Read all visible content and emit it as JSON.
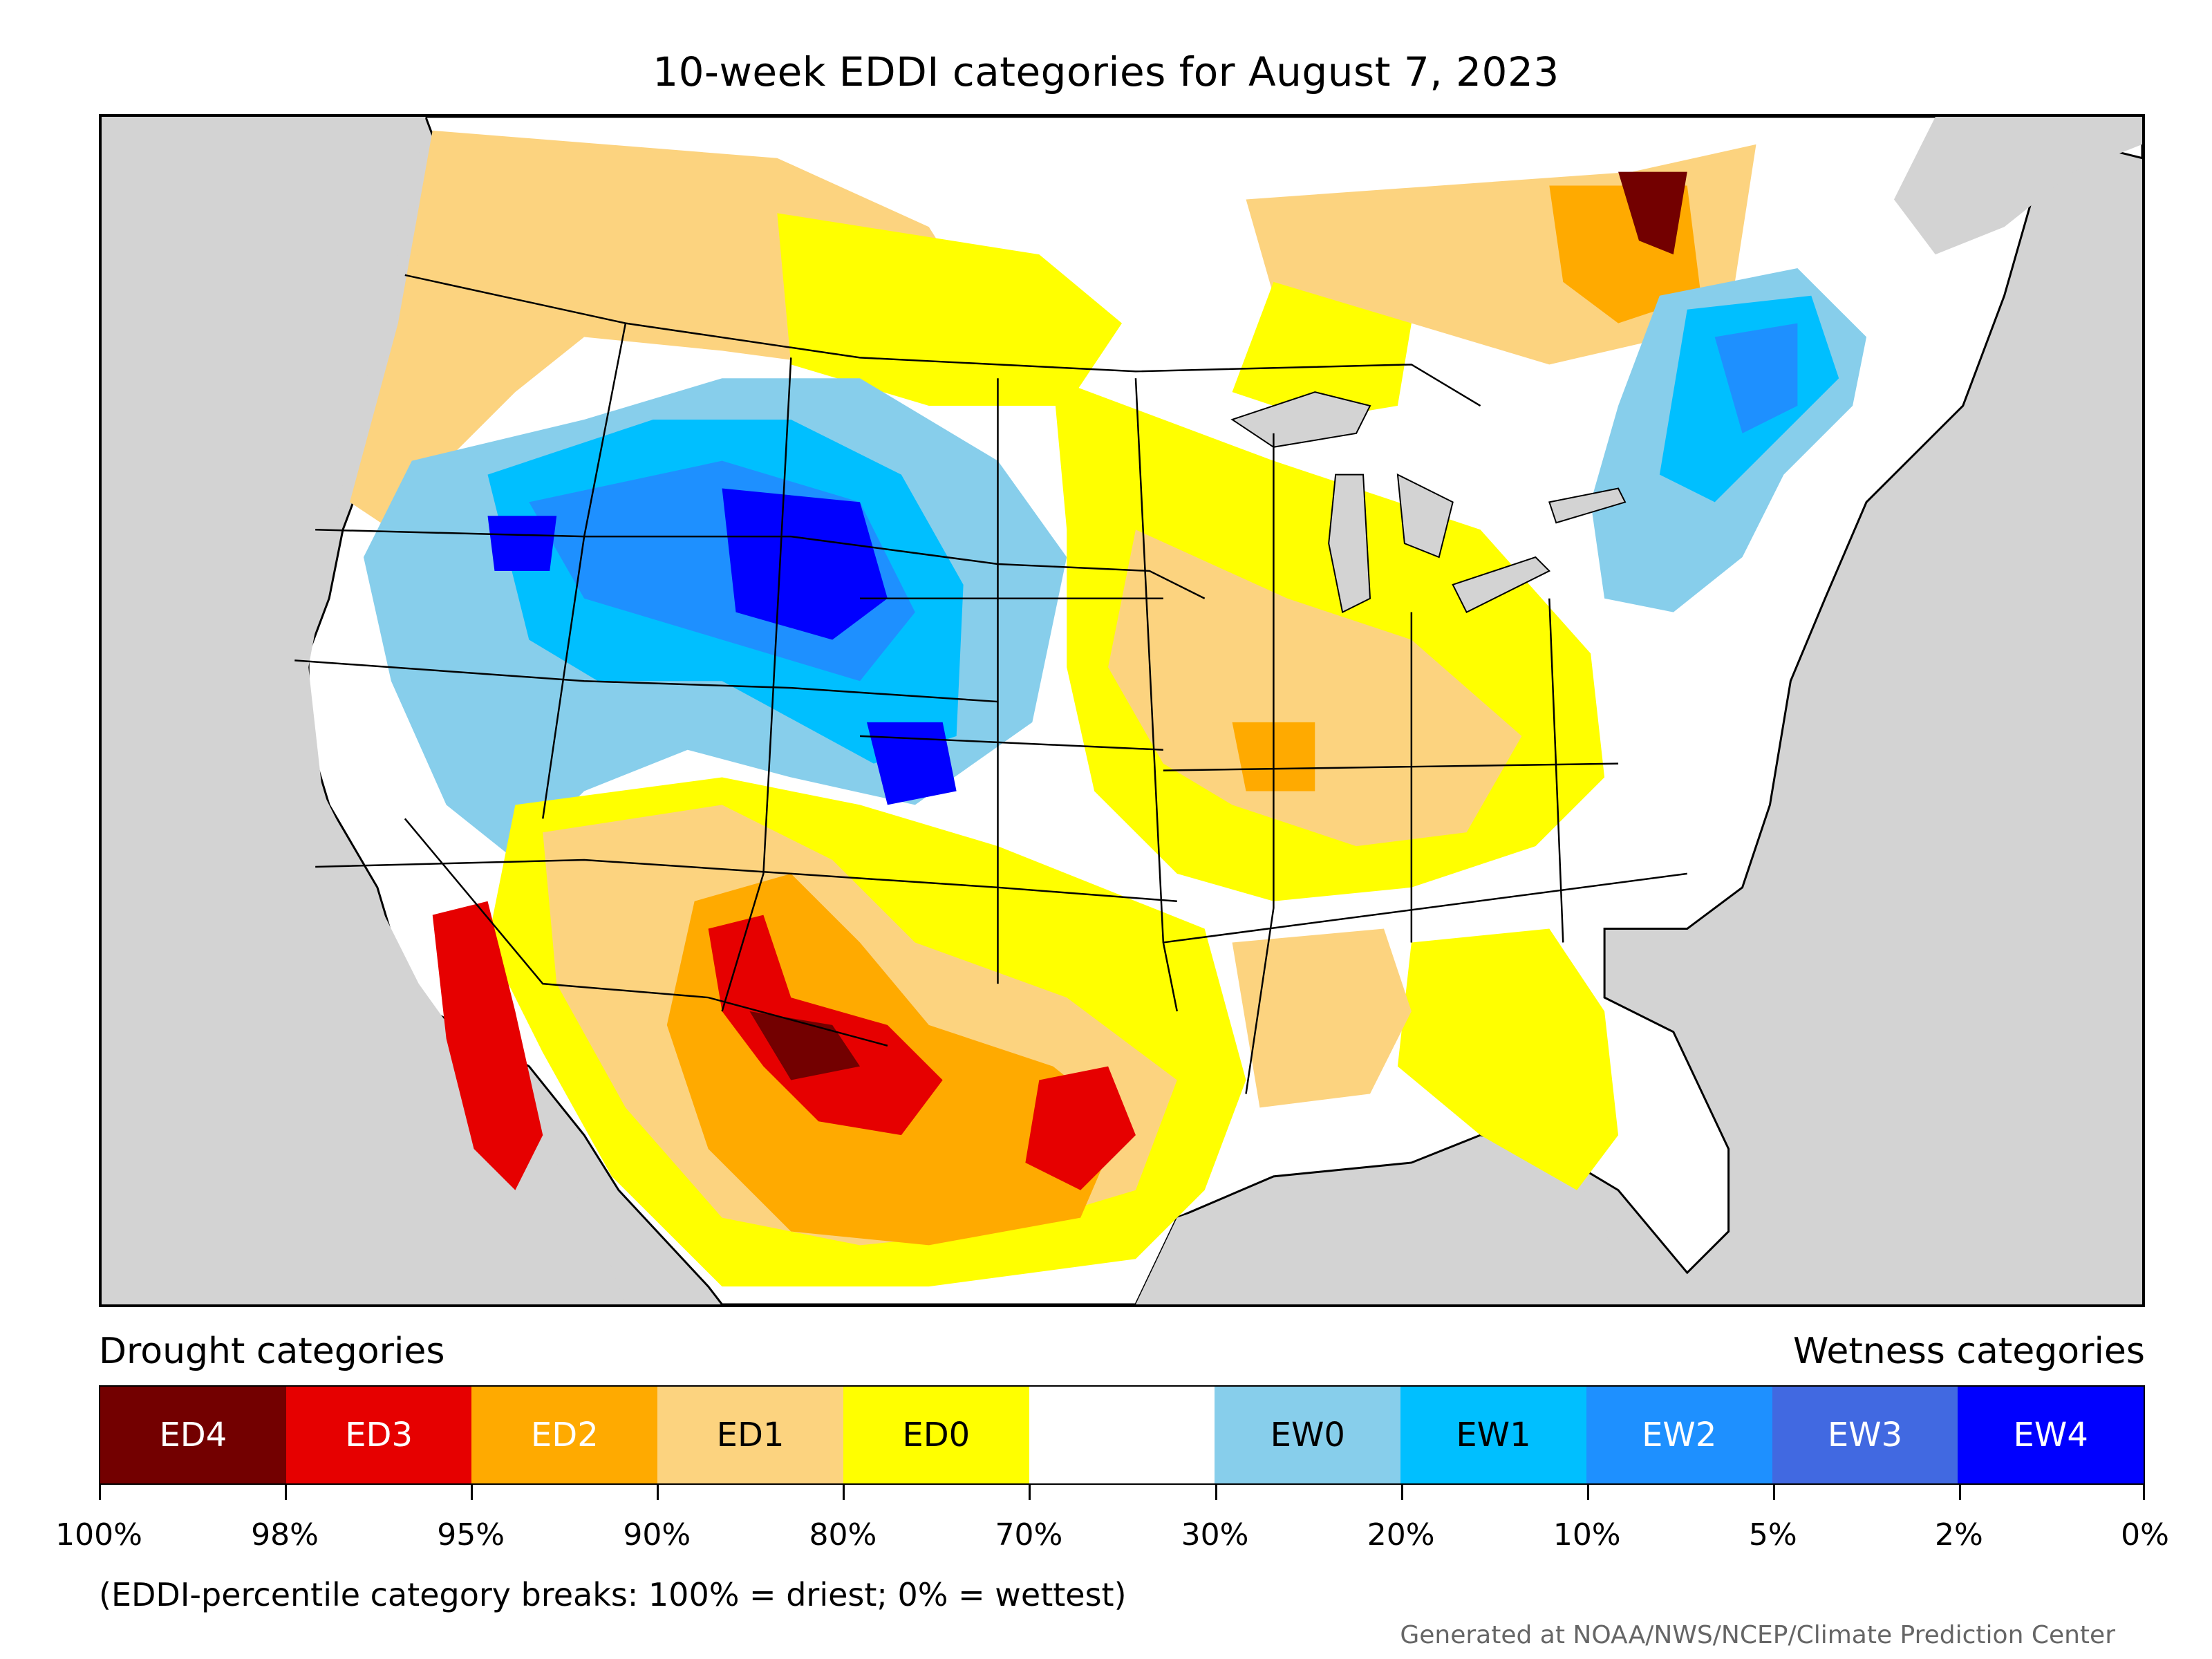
{
  "title": "10-week EDDI categories for August 7, 2023",
  "legend": {
    "drought_heading": "Drought categories",
    "wetness_heading": "Wetness categories",
    "categories": [
      {
        "label": "ED4",
        "color": "#730000",
        "text_color": "#ffffff"
      },
      {
        "label": "ED3",
        "color": "#e60000",
        "text_color": "#ffffff"
      },
      {
        "label": "ED2",
        "color": "#ffaa00",
        "text_color": "#ffffff"
      },
      {
        "label": "ED1",
        "color": "#fcd37f",
        "text_color": "#000000"
      },
      {
        "label": "ED0",
        "color": "#ffff00",
        "text_color": "#000000"
      },
      {
        "label": "",
        "color": "#ffffff",
        "text_color": "#000000"
      },
      {
        "label": "EW0",
        "color": "#87ceeb",
        "text_color": "#000000"
      },
      {
        "label": "EW1",
        "color": "#00bfff",
        "text_color": "#000000"
      },
      {
        "label": "EW2",
        "color": "#1e90ff",
        "text_color": "#ffffff"
      },
      {
        "label": "EW3",
        "color": "#4169e1",
        "text_color": "#ffffff"
      },
      {
        "label": "EW4",
        "color": "#0000ff",
        "text_color": "#ffffff"
      }
    ],
    "ticks": [
      "100%",
      "98%",
      "95%",
      "90%",
      "80%",
      "70%",
      "30%",
      "20%",
      "10%",
      "5%",
      "2%",
      "0%"
    ]
  },
  "note": "(EDDI-percentile category breaks: 100% = driest; 0% = wettest)",
  "credit": "Generated at NOAA/NWS/NCEP/Climate Prediction Center",
  "map": {
    "ocean_color": "#d3d3d3",
    "land_color": "#ffffff",
    "border_color": "#000000"
  }
}
